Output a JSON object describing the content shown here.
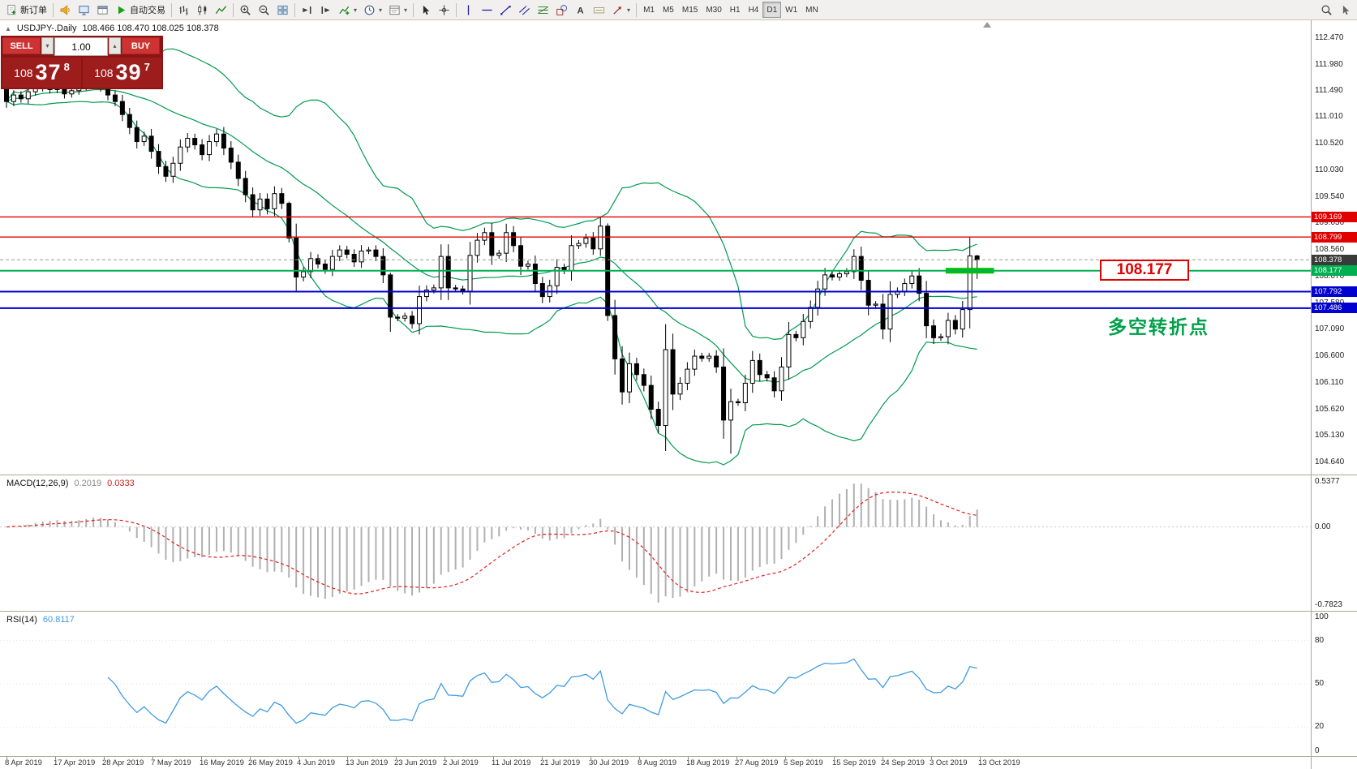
{
  "toolbar": {
    "items": [
      {
        "type": "button",
        "name": "new-order-button",
        "icon": "doc-icon",
        "label": "新订单"
      },
      {
        "type": "sep"
      },
      {
        "type": "button",
        "name": "alerts-button",
        "icon": "horn-icon"
      },
      {
        "type": "button",
        "name": "market-watch-button",
        "icon": "monitor-icon"
      },
      {
        "type": "button",
        "name": "data-window-button",
        "icon": "window-icon"
      },
      {
        "type": "button",
        "name": "autotrading-button",
        "icon": "play-icon",
        "label": "自动交易"
      },
      {
        "type": "sep"
      },
      {
        "type": "button",
        "name": "bar-chart-button",
        "icon": "bars-icon"
      },
      {
        "type": "button",
        "name": "candlestick-chart-button",
        "icon": "candles-icon"
      },
      {
        "type": "button",
        "name": "line-chart-button",
        "icon": "linechart-icon"
      },
      {
        "type": "sep"
      },
      {
        "type": "button",
        "name": "zoom-in-button",
        "icon": "zoomin-icon"
      },
      {
        "type": "button",
        "name": "zoom-out-button",
        "icon": "zoomout-icon"
      },
      {
        "type": "button",
        "name": "tile-windows-button",
        "icon": "grid-icon"
      },
      {
        "type": "sep"
      },
      {
        "type": "button",
        "name": "auto-scroll-button",
        "icon": "autoscroll-icon"
      },
      {
        "type": "button",
        "name": "chart-shift-button",
        "icon": "shift-icon"
      },
      {
        "type": "button",
        "name": "indicators-button",
        "icon": "indicators-icon",
        "caret": true
      },
      {
        "type": "button",
        "name": "periods-button",
        "icon": "clock-icon",
        "caret": true
      },
      {
        "type": "button",
        "name": "templates-button",
        "icon": "template-icon",
        "caret": true
      },
      {
        "type": "sep"
      },
      {
        "type": "button",
        "name": "cursor-button",
        "icon": "cursor-icon"
      },
      {
        "type": "button",
        "name": "crosshair-button",
        "icon": "crosshair-icon"
      },
      {
        "type": "sep"
      },
      {
        "type": "button",
        "name": "vertical-line-button",
        "icon": "vline-icon"
      },
      {
        "type": "button",
        "name": "horizontal-line-button",
        "icon": "hline-icon"
      },
      {
        "type": "button",
        "name": "trendline-button",
        "icon": "trend-icon"
      },
      {
        "type": "button",
        "name": "equidistant-channel-button",
        "icon": "channel-icon"
      },
      {
        "type": "button",
        "name": "fibonacci-button",
        "icon": "fib-icon"
      },
      {
        "type": "button",
        "name": "shapes-button",
        "icon": "shapes-icon"
      },
      {
        "type": "button",
        "name": "text-button",
        "icon": "text-icon"
      },
      {
        "type": "button",
        "name": "text-label-button",
        "icon": "label-icon"
      },
      {
        "type": "button",
        "name": "arrows-button",
        "icon": "arrowtool-icon",
        "caret": true
      },
      {
        "type": "sep"
      },
      {
        "type": "tf",
        "name": "timeframe-m1-button",
        "label": "M1"
      },
      {
        "type": "tf",
        "name": "timeframe-m5-button",
        "label": "M5"
      },
      {
        "type": "tf",
        "name": "timeframe-m15-button",
        "label": "M15"
      },
      {
        "type": "tf",
        "name": "timeframe-m30-button",
        "label": "M30"
      },
      {
        "type": "tf",
        "name": "timeframe-h1-button",
        "label": "H1"
      },
      {
        "type": "tf",
        "name": "timeframe-h4-button",
        "label": "H4"
      },
      {
        "type": "tf",
        "name": "timeframe-d1-button",
        "label": "D1",
        "active": true
      },
      {
        "type": "tf",
        "name": "timeframe-w1-button",
        "label": "W1"
      },
      {
        "type": "tf",
        "name": "timeframe-mn-button",
        "label": "MN"
      }
    ],
    "right_items": [
      {
        "type": "button",
        "name": "search-button",
        "icon": "magnify-icon"
      },
      {
        "type": "button",
        "name": "quick-cursor-button",
        "icon": "pointer-icon"
      }
    ]
  },
  "trade": {
    "sell_label": "SELL",
    "buy_label": "BUY",
    "volume": "1.00",
    "bid": {
      "base": "108",
      "big": "37",
      "sup": "8"
    },
    "ask": {
      "base": "108",
      "big": "39",
      "sup": "7"
    }
  },
  "annotations": {
    "price_label": "108.177",
    "turning_point": "多空转折点"
  },
  "chart_data": {
    "type": "candlestick",
    "title": "USDJPY-.Daily",
    "ohlc_text": "108.466 108.470 108.025 108.378",
    "symbol": "USDJPY",
    "timeframe": "Daily",
    "ylim": [
      104.415,
      112.814
    ],
    "y_ticks": [
      "112.470",
      "111.980",
      "111.490",
      "111.010",
      "110.520",
      "110.030",
      "109.540",
      "109.050",
      "108.560",
      "108.070",
      "107.580",
      "107.090",
      "106.600",
      "106.110",
      "105.620",
      "105.130",
      "104.640"
    ],
    "price_tags": [
      {
        "text": "109.169",
        "bg": "#e00000"
      },
      {
        "text": "108.799",
        "bg": "#e00000"
      },
      {
        "text": "108.378",
        "bg": "#3a3a3a"
      },
      {
        "text": "108.177",
        "bg": "#00b050"
      },
      {
        "text": "107.792",
        "bg": "#0000d0"
      },
      {
        "text": "107.486",
        "bg": "#0000d0"
      }
    ],
    "levels": [
      {
        "price": 109.169,
        "color": "#e00000",
        "width": 1.4
      },
      {
        "price": 108.799,
        "color": "#e00000",
        "width": 1.4
      },
      {
        "price": 108.378,
        "color": "#999999",
        "width": 1,
        "dash": true
      },
      {
        "price": 108.177,
        "color": "#00b050",
        "width": 2
      },
      {
        "price": 107.792,
        "color": "#0000d0",
        "width": 2
      },
      {
        "price": 107.486,
        "color": "#0000d0",
        "width": 2
      }
    ],
    "green_zone": {
      "price": 108.177,
      "from_index": 130,
      "to_index": 136
    },
    "x_axis_dates": [
      "8 Apr 2019",
      "17 Apr 2019",
      "28 Apr 2019",
      "7 May 2019",
      "16 May 2019",
      "26 May 2019",
      "4 Jun 2019",
      "13 Jun 2019",
      "23 Jun 2019",
      "2 Jul 2019",
      "11 Jul 2019",
      "21 Jul 2019",
      "30 Jul 2019",
      "8 Aug 2019",
      "18 Aug 2019",
      "27 Aug 2019",
      "5 Sep 2019",
      "15 Sep 2019",
      "24 Sep 2019",
      "3 Oct 2019",
      "13 Oct 2019"
    ],
    "open_first": 111.52,
    "closes": [
      111.3,
      111.42,
      111.35,
      111.48,
      111.55,
      111.6,
      111.52,
      111.56,
      111.44,
      111.5,
      111.58,
      111.66,
      111.74,
      111.58,
      111.42,
      111.3,
      111.06,
      110.82,
      110.56,
      110.66,
      110.38,
      110.1,
      109.92,
      110.16,
      110.46,
      110.62,
      110.5,
      110.32,
      110.56,
      110.7,
      110.44,
      110.18,
      109.88,
      109.58,
      109.3,
      109.5,
      109.32,
      109.6,
      109.42,
      108.78,
      108.06,
      108.16,
      108.4,
      108.3,
      108.2,
      108.44,
      108.56,
      108.48,
      108.34,
      108.54,
      108.56,
      108.44,
      108.1,
      107.32,
      107.3,
      107.34,
      107.2,
      107.7,
      107.82,
      107.86,
      108.44,
      107.86,
      107.84,
      107.8,
      108.46,
      108.74,
      108.88,
      108.46,
      108.5,
      108.88,
      108.64,
      108.26,
      108.3,
      107.94,
      107.7,
      107.9,
      108.24,
      108.18,
      108.64,
      108.68,
      108.78,
      108.58,
      109.0,
      107.35,
      106.55,
      105.94,
      106.46,
      106.26,
      106.06,
      105.62,
      105.32,
      106.72,
      105.9,
      106.1,
      106.36,
      106.6,
      106.56,
      106.6,
      106.4,
      105.42,
      105.76,
      105.74,
      106.1,
      106.52,
      106.26,
      106.2,
      105.96,
      106.4,
      107.0,
      106.94,
      107.24,
      107.5,
      107.84,
      108.1,
      108.06,
      108.12,
      108.16,
      108.44,
      108.0,
      107.54,
      107.56,
      107.1,
      107.74,
      107.8,
      107.94,
      108.08,
      107.76,
      107.16,
      106.94,
      106.96,
      107.26,
      107.1,
      107.46,
      108.45,
      108.378
    ],
    "wick_overrides": {
      "39": [
        109.45,
        108.7
      ],
      "53": [
        108.14,
        107.05
      ],
      "82": [
        109.17,
        108.45
      ],
      "83": [
        109.05,
        107.25
      ],
      "100": [
        106.0,
        104.8
      ],
      "134": [
        108.47,
        108.025
      ]
    },
    "indicators": {
      "bollinger": {
        "period": 20,
        "deviation": 2,
        "color": "#009a4e"
      },
      "macd": {
        "label": "MACD(12,26,9)",
        "value_main": "0.2019",
        "value_signal": "0.0333",
        "axis": [
          "0.5377",
          "0.00",
          "-0.7823"
        ],
        "hist_color": "#b0b0b0",
        "signal_color": "#e02020"
      },
      "rsi": {
        "label": "RSI(14)",
        "value": "60.8117",
        "axis": [
          "100",
          "80",
          "50",
          "20",
          "0"
        ],
        "color": "#3f9be0"
      }
    }
  }
}
